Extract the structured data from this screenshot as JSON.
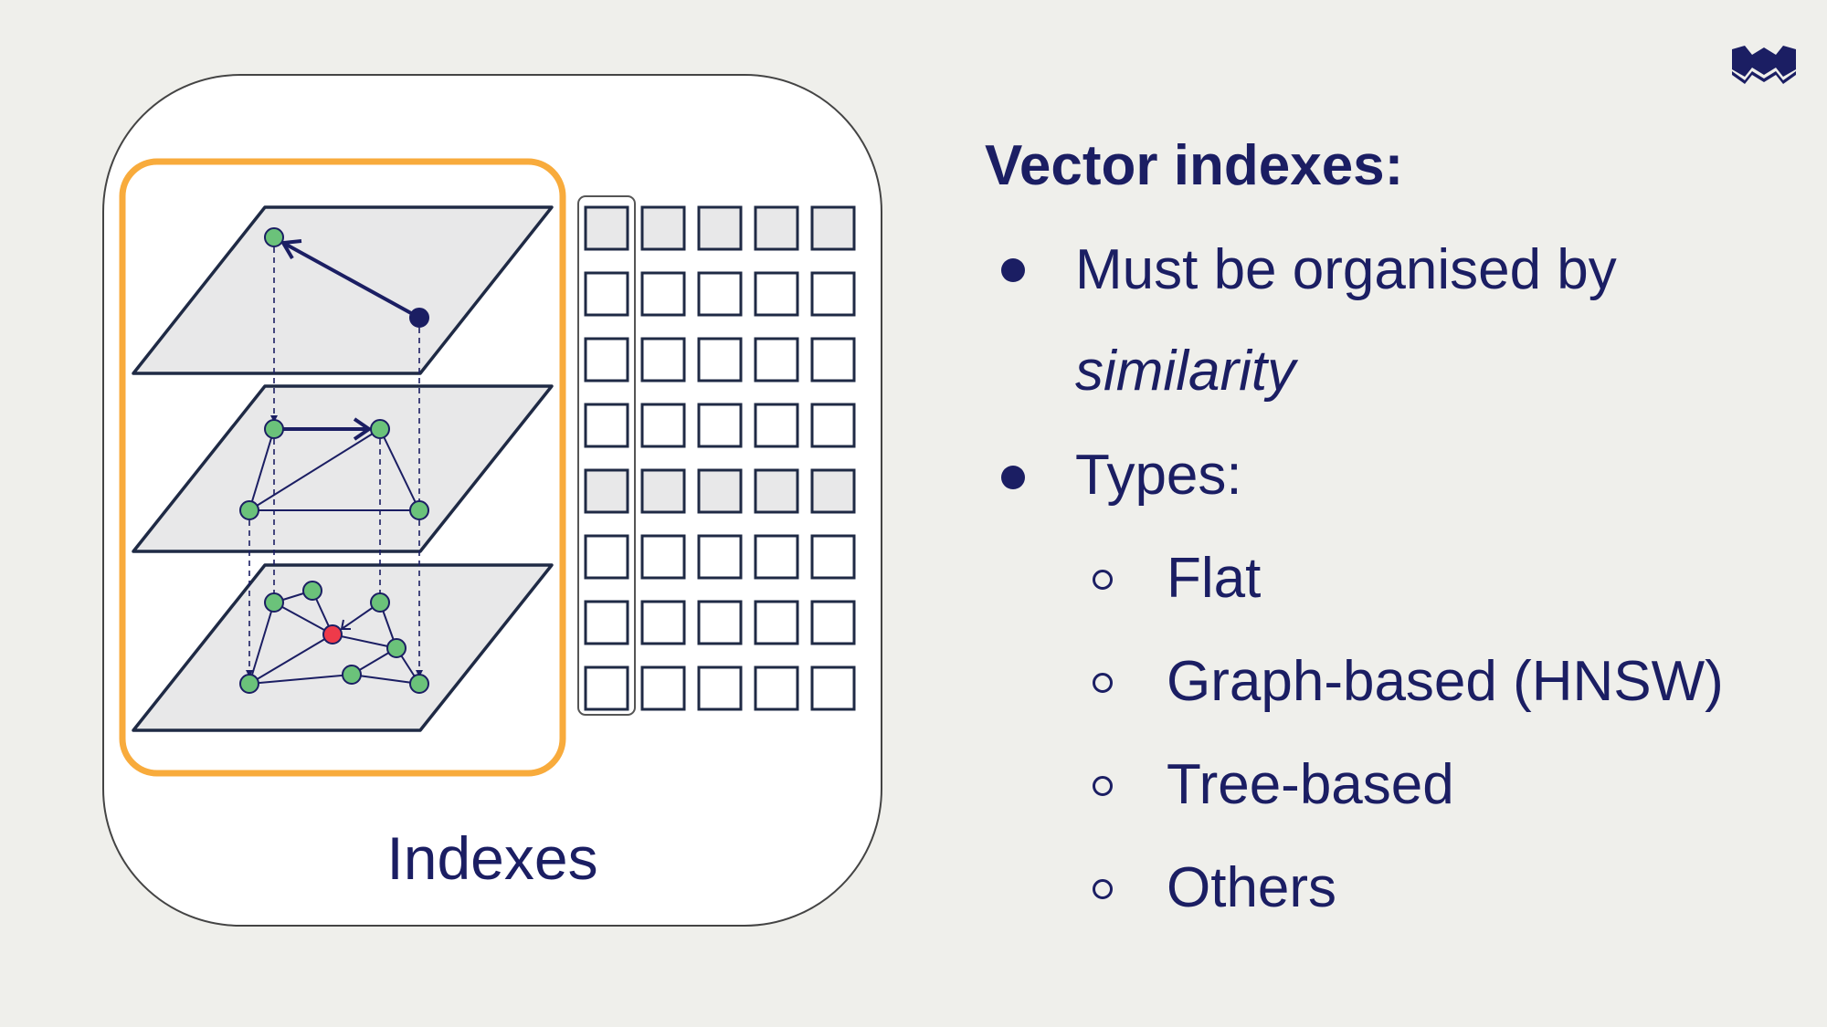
{
  "diagram": {
    "caption": "Indexes"
  },
  "content": {
    "heading": "Vector indexes:",
    "bullets": [
      {
        "text": "Must be organised by"
      },
      {
        "text_continued": "similarity"
      },
      {
        "text": "Types:"
      }
    ],
    "sub_bullets": [
      "Flat",
      "Graph-based (HNSW)",
      "Tree-based",
      "Others"
    ]
  },
  "colors": {
    "background": "#efefeb",
    "primary_navy": "#1b1e63",
    "highlight_orange": "#f8ab3c",
    "node_green": "#6bc27a",
    "query_node_red": "#ee3a4a",
    "plane_fill": "#e8e8e9"
  },
  "icons": {
    "logo": "weaviate-logo-icon"
  }
}
